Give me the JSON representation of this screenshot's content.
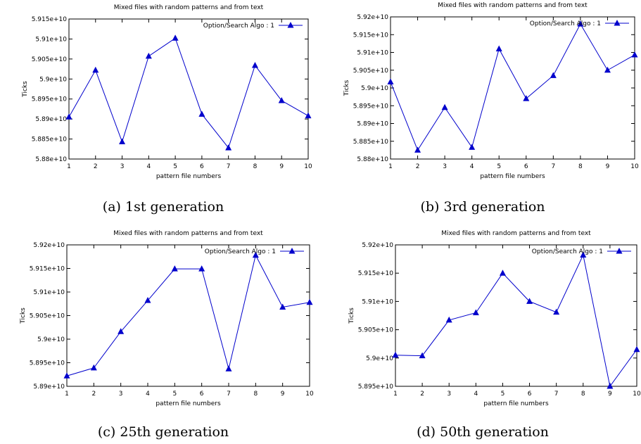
{
  "panels": [
    {
      "caption": "(a) 1st generation",
      "chart_data": {
        "type": "line",
        "title": "Mixed files with random patterns and from text",
        "xlabel": "pattern file numbers",
        "ylabel": "Ticks",
        "x": [
          1,
          2,
          3,
          4,
          5,
          6,
          7,
          8,
          9,
          10
        ],
        "xlim": [
          1,
          10
        ],
        "ylim": [
          58800000000,
          59150000000
        ],
        "yticks": [
          58800000000,
          58850000000,
          58900000000,
          58950000000,
          59000000000,
          59050000000,
          59100000000,
          59150000000
        ],
        "ytick_labels": [
          "5.88e+10",
          "5.885e+10",
          "5.89e+10",
          "5.895e+10",
          "5.9e+10",
          "5.905e+10",
          "5.91e+10",
          "5.915e+10"
        ],
        "series": [
          {
            "name": "Option/Search Algo : 1",
            "color": "#0000cc",
            "values": [
              58905000000,
              59022000000,
              58843000000,
              59057000000,
              59102000000,
              58912000000,
              58828000000,
              59034000000,
              58946000000,
              58908000000
            ]
          }
        ],
        "legend": "top-right",
        "grid": false
      }
    },
    {
      "caption": "(b) 3rd generation",
      "chart_data": {
        "type": "line",
        "title": "Mixed files with random patterns and from text",
        "xlabel": "pattern file numbers",
        "ylabel": "Ticks",
        "x": [
          1,
          2,
          3,
          4,
          5,
          6,
          7,
          8,
          9,
          10
        ],
        "xlim": [
          1,
          10
        ],
        "ylim": [
          58800000000,
          59200000000
        ],
        "yticks": [
          58800000000,
          58850000000,
          58900000000,
          58950000000,
          59000000000,
          59050000000,
          59100000000,
          59150000000,
          59200000000
        ],
        "ytick_labels": [
          "5.88e+10",
          "5.885e+10",
          "5.89e+10",
          "5.895e+10",
          "5.9e+10",
          "5.905e+10",
          "5.91e+10",
          "5.915e+10",
          "5.92e+10"
        ],
        "series": [
          {
            "name": "Option/Search Algo : 1",
            "color": "#0000cc",
            "values": [
              59017000000,
              58825000000,
              58945000000,
              58833000000,
              59110000000,
              58970000000,
              59035000000,
              59180000000,
              59050000000,
              59093000000
            ]
          }
        ],
        "legend": "top-right",
        "grid": false
      }
    },
    {
      "caption": "(c) 25th generation",
      "chart_data": {
        "type": "line",
        "title": "Mixed files with random patterns and from text",
        "xlabel": "pattern file numbers",
        "ylabel": "Ticks",
        "x": [
          1,
          2,
          3,
          4,
          5,
          6,
          7,
          8,
          9,
          10
        ],
        "xlim": [
          1,
          10
        ],
        "ylim": [
          58900000000,
          59200000000
        ],
        "yticks": [
          58900000000,
          58950000000,
          59000000000,
          59050000000,
          59100000000,
          59150000000,
          59200000000
        ],
        "ytick_labels": [
          "5.89e+10",
          "5.895e+10",
          "5.9e+10",
          "5.905e+10",
          "5.91e+10",
          "5.915e+10",
          "5.92e+10"
        ],
        "series": [
          {
            "name": "Option/Search Algo : 1",
            "color": "#0000cc",
            "values": [
              58922000000,
              58939000000,
              59016000000,
              59082000000,
              59149000000,
              59149000000,
              58937000000,
              59178000000,
              59068000000,
              59078000000
            ]
          }
        ],
        "legend": "top-right",
        "grid": false
      }
    },
    {
      "caption": "(d) 50th generation",
      "chart_data": {
        "type": "line",
        "title": "Mixed files with random patterns and from text",
        "xlabel": "pattern file numbers",
        "ylabel": "Ticks",
        "x": [
          1,
          2,
          3,
          4,
          5,
          6,
          7,
          8,
          9,
          10
        ],
        "xlim": [
          1,
          10
        ],
        "ylim": [
          58950000000,
          59200000000
        ],
        "yticks": [
          58950000000,
          59000000000,
          59050000000,
          59100000000,
          59150000000,
          59200000000
        ],
        "ytick_labels": [
          "5.895e+10",
          "5.9e+10",
          "5.905e+10",
          "5.91e+10",
          "5.915e+10",
          "5.92e+10"
        ],
        "series": [
          {
            "name": "Option/Search Algo : 1",
            "color": "#0000cc",
            "values": [
              59005000000,
              59004000000,
              59067000000,
              59080000000,
              59150000000,
              59100000000,
              59081000000,
              59182000000,
              58950000000,
              59015000000
            ]
          }
        ],
        "legend": "top-right",
        "grid": false
      }
    }
  ]
}
